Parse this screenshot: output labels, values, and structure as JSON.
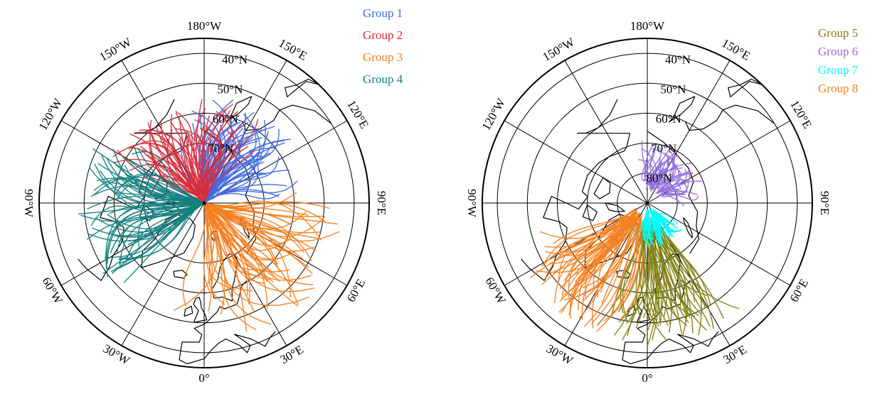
{
  "maps": [
    {
      "id": "left",
      "lon_labels": [
        {
          "lon": 180,
          "text": "180°W"
        },
        {
          "lon": 150,
          "text": "150°E"
        },
        {
          "lon": 120,
          "text": "120°E"
        },
        {
          "lon": 90,
          "text": "90°E"
        },
        {
          "lon": 60,
          "text": "60°E"
        },
        {
          "lon": 30,
          "text": "30°E"
        },
        {
          "lon": 0,
          "text": "0°"
        },
        {
          "lon": -30,
          "text": "30°W"
        },
        {
          "lon": -60,
          "text": "60°W"
        },
        {
          "lon": -90,
          "text": "90°W"
        },
        {
          "lon": -120,
          "text": "120°W"
        },
        {
          "lon": -150,
          "text": "150°W"
        }
      ],
      "lat_labels": [
        {
          "lat": 40,
          "text": "40°N"
        },
        {
          "lat": 50,
          "text": "50°N"
        },
        {
          "lat": 60,
          "text": "60°N"
        },
        {
          "lat": 70,
          "text": "70°N"
        }
      ],
      "legend": [
        {
          "label": "Group 1",
          "color": "#4169e1"
        },
        {
          "label": "Group 2",
          "color": "#d62c3c"
        },
        {
          "label": "Group 3",
          "color": "#f47f20"
        },
        {
          "label": "Group 4",
          "color": "#13807f"
        }
      ]
    },
    {
      "id": "right",
      "lon_labels": [
        {
          "lon": 180,
          "text": "180°W"
        },
        {
          "lon": 150,
          "text": "150°E"
        },
        {
          "lon": 120,
          "text": "120°E"
        },
        {
          "lon": 90,
          "text": "90°E"
        },
        {
          "lon": 60,
          "text": "60°E"
        },
        {
          "lon": 30,
          "text": "30°E"
        },
        {
          "lon": 0,
          "text": "0°"
        },
        {
          "lon": -30,
          "text": "30°W"
        },
        {
          "lon": -60,
          "text": "60°W"
        },
        {
          "lon": -90,
          "text": "90°W"
        },
        {
          "lon": -120,
          "text": "120°W"
        },
        {
          "lon": -150,
          "text": "150°W"
        }
      ],
      "lat_labels": [
        {
          "lat": 40,
          "text": "40°N"
        },
        {
          "lat": 50,
          "text": "50°N"
        },
        {
          "lat": 60,
          "text": "60°N"
        },
        {
          "lat": 70,
          "text": "70°N"
        },
        {
          "lat": 80,
          "text": "80°N"
        }
      ],
      "legend": [
        {
          "label": "Group 5",
          "color": "#7f7f12"
        },
        {
          "label": "Group 6",
          "color": "#9370db"
        },
        {
          "label": "Group 7",
          "color": "#00ffff"
        },
        {
          "label": "Group 8",
          "color": "#f47f20"
        }
      ]
    }
  ]
}
